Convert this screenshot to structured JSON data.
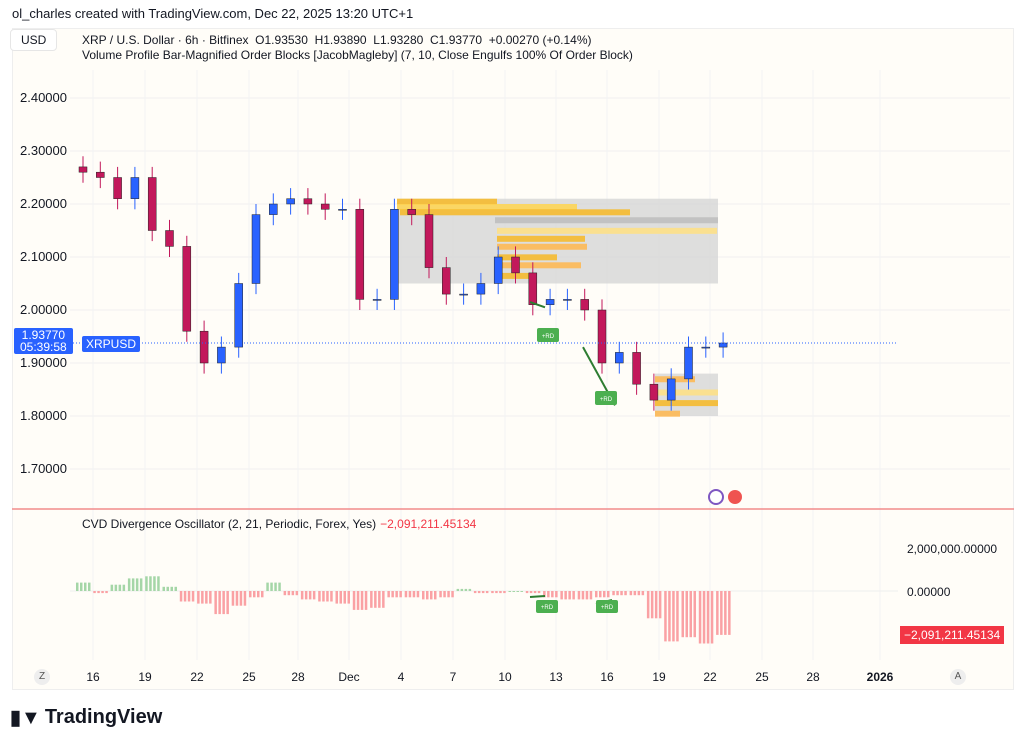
{
  "credit": "ol_charles created with TradingView.com, Dec 22, 2025 13:20 UTC+1",
  "currency": "USD",
  "legend": {
    "title": "XRP / U.S. Dollar · 6h · Bitfinex",
    "o": "O1.93530",
    "h": "H1.93890",
    "l": "L1.93280",
    "c": "C1.93770",
    "chg": "+0.00270 (+0.14%)",
    "indicator": "Volume Profile Bar-Magnified Order Blocks [JacobMagleby] (7, 10, Close Engulfs 100% Of Order Block)"
  },
  "price_tag": {
    "price": "1.93770",
    "countdown": "05:39:58",
    "symbol": "XRPUSD"
  },
  "oscillator": {
    "title": "CVD Divergence Oscillator (2, 21, Periodic, Forex, Yes)",
    "value": "−2,091,211.45134",
    "axis": [
      "2,000,000.00000",
      "0.00000"
    ],
    "tag": "−2,091,211.45134"
  },
  "divergence_label": "+RD",
  "axis_buttons": {
    "left": "Z",
    "right": "A"
  },
  "brand": "TradingView",
  "colors": {
    "up": "#2962ff",
    "down": "#c2185b",
    "osc_pos": "#a5d6a7",
    "osc_neg": "#faa1a4",
    "zone": "#d6d6d6",
    "ob": "#f7b924"
  },
  "chart_data": {
    "type": "candlestick",
    "title": "XRP / U.S. Dollar · 6h · Bitfinex",
    "price_ticks": [
      "2.40000",
      "2.30000",
      "2.20000",
      "2.10000",
      "2.00000",
      "1.90000",
      "1.80000",
      "1.70000"
    ],
    "x_ticks": [
      "16",
      "19",
      "22",
      "25",
      "28",
      "Dec",
      "4",
      "7",
      "10",
      "13",
      "16",
      "19",
      "22",
      "25",
      "28",
      "2026"
    ],
    "dates": [
      "Nov15",
      "Nov16",
      "Nov17",
      "Nov18",
      "Nov19",
      "Nov20",
      "Nov21",
      "Nov22",
      "Nov23",
      "Nov24",
      "Nov25",
      "Nov26",
      "Nov27",
      "Nov28",
      "Nov29",
      "Nov30",
      "Dec1",
      "Dec2",
      "Dec3",
      "Dec4",
      "Dec5",
      "Dec6",
      "Dec7",
      "Dec8",
      "Dec9",
      "Dec10",
      "Dec11",
      "Dec12",
      "Dec13",
      "Dec14",
      "Dec15",
      "Dec16",
      "Dec17",
      "Dec18",
      "Dec19",
      "Dec20",
      "Dec21",
      "Dec22"
    ],
    "close": [
      2.26,
      2.25,
      2.21,
      2.25,
      2.15,
      2.12,
      1.96,
      1.9,
      1.93,
      2.05,
      2.18,
      2.2,
      2.21,
      2.2,
      2.19,
      2.19,
      2.02,
      2.02,
      2.19,
      2.18,
      2.08,
      2.03,
      2.03,
      2.05,
      2.1,
      2.07,
      2.01,
      2.02,
      2.02,
      2.0,
      1.9,
      1.92,
      1.86,
      1.83,
      1.87,
      1.93,
      1.93,
      1.9377
    ],
    "osc": [
      0.4,
      -0.1,
      0.3,
      0.6,
      0.7,
      0.2,
      -0.5,
      -0.6,
      -1.1,
      -0.7,
      -0.3,
      0.4,
      -0.2,
      -0.4,
      -0.5,
      -0.6,
      -0.9,
      -0.8,
      -0.3,
      -0.3,
      -0.4,
      -0.3,
      0.1,
      -0.1,
      -0.1,
      0.0,
      -0.1,
      -0.3,
      -0.4,
      -0.4,
      -0.3,
      -0.2,
      -0.2,
      -1.3,
      -2.4,
      -2.2,
      -2.5,
      -2.09
    ],
    "osc_unit": "millions",
    "ylim": [
      1.63,
      2.45
    ]
  }
}
